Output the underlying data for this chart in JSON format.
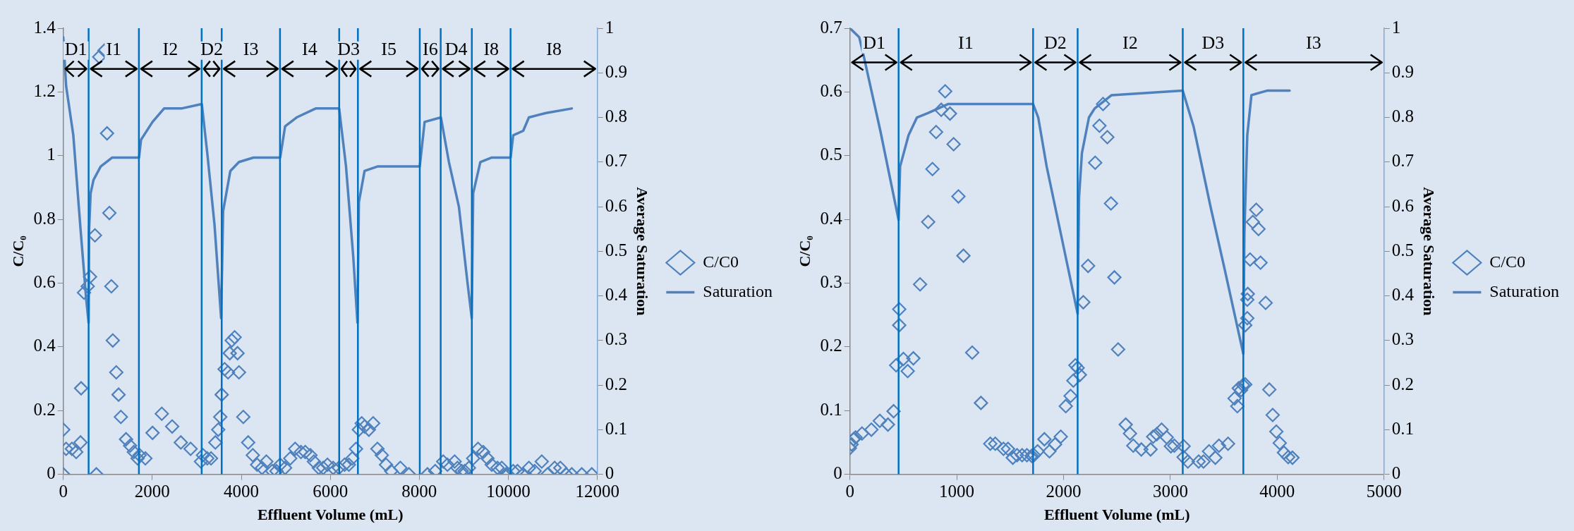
{
  "chart_data": [
    {
      "type": "scatter",
      "xlabel": "Effluent Volume (mL)",
      "ylabel": "C/C₀",
      "y2label": "Average Saturation",
      "xlim": [
        0,
        12000
      ],
      "xticks": [
        0,
        2000,
        4000,
        6000,
        8000,
        10000,
        12000
      ],
      "ylim": [
        0,
        1.4
      ],
      "yticks": [
        0,
        0.2,
        0.4,
        0.6,
        0.8,
        1,
        1.2,
        1.4
      ],
      "y2lim": [
        0,
        1
      ],
      "y2ticks": [
        0,
        0.1,
        0.2,
        0.3,
        0.4,
        0.5,
        0.6,
        0.7,
        0.8,
        0.9,
        1
      ],
      "grid": false,
      "legend": "right",
      "marker": "diamond",
      "ref_lines": [
        {
          "axis": "x",
          "value": 570,
          "color": "#0070c0"
        },
        {
          "axis": "x",
          "value": 1700,
          "color": "#0070c0"
        },
        {
          "axis": "x",
          "value": 3110,
          "color": "#0070c0"
        },
        {
          "axis": "x",
          "value": 3560,
          "color": "#0070c0"
        },
        {
          "axis": "x",
          "value": 4870,
          "color": "#0070c0"
        },
        {
          "axis": "x",
          "value": 6200,
          "color": "#0070c0"
        },
        {
          "axis": "x",
          "value": 6620,
          "color": "#0070c0"
        },
        {
          "axis": "x",
          "value": 8010,
          "color": "#0070c0"
        },
        {
          "axis": "x",
          "value": 8480,
          "color": "#0070c0"
        },
        {
          "axis": "x",
          "value": 9180,
          "color": "#0070c0"
        },
        {
          "axis": "x",
          "value": 10050,
          "color": "#0070c0"
        }
      ],
      "annotations": [
        {
          "text": "D1",
          "x": 285,
          "y": 1.33
        },
        {
          "text": "I1",
          "x": 1135,
          "y": 1.33
        },
        {
          "text": "I2",
          "x": 2405,
          "y": 1.33
        },
        {
          "text": "D2",
          "x": 3335,
          "y": 1.33
        },
        {
          "text": "I3",
          "x": 4215,
          "y": 1.33
        },
        {
          "text": "I4",
          "x": 5535,
          "y": 1.33
        },
        {
          "text": "D3",
          "x": 6410,
          "y": 1.33
        },
        {
          "text": "I5",
          "x": 7315,
          "y": 1.33
        },
        {
          "text": "I6",
          "x": 8245,
          "y": 1.33
        },
        {
          "text": "D4",
          "x": 8830,
          "y": 1.33
        },
        {
          "text": "I8",
          "x": 9615,
          "y": 1.33
        },
        {
          "text": "I8",
          "x": 11025,
          "y": 1.33
        }
      ],
      "series": [
        {
          "name": "C/C0",
          "type": "scatter",
          "color": "#4f81bd",
          "x": [
            0,
            0,
            65,
            194,
            291,
            388,
            401,
            466,
            550,
            602,
            712,
            744,
            809,
            926,
            984,
            1036,
            1081,
            1113,
            1191,
            1243,
            1294,
            1411,
            1502,
            1586,
            1670,
            1715,
            1845,
            2006,
            2214,
            2447,
            2641,
            2861,
            3094,
            3139,
            3236,
            3320,
            3417,
            3482,
            3528,
            3560,
            3625,
            3702,
            3741,
            3786,
            3851,
            3916,
            3948,
            4045,
            4155,
            4259,
            4356,
            4466,
            4563,
            4693,
            4790,
            4874,
            4984,
            5100,
            5210,
            5340,
            5437,
            5553,
            5631,
            5743,
            5840,
            5936,
            6064,
            6193,
            6321,
            6417,
            6494,
            6578,
            6642,
            6706,
            6770,
            6867,
            6963,
            7059,
            7156,
            7252,
            7368,
            7573,
            7766,
            8183,
            8356,
            8536,
            8632,
            8793,
            8857,
            8953,
            9018,
            9114,
            9210,
            9319,
            9435,
            9531,
            9628,
            9756,
            9852,
            9949,
            10109,
            10205,
            10334,
            10462,
            10591,
            10751,
            10880,
            11040,
            11168,
            11297,
            11425,
            11650,
            11875
          ],
          "values": [
            0,
            0.14,
            0.08,
            0.08,
            0.07,
            0.1,
            0.27,
            0.57,
            0.59,
            0.62,
            0.75,
            0,
            1.31,
            1.33,
            1.07,
            0.82,
            0.59,
            0.42,
            0.32,
            0.25,
            0.18,
            0.11,
            0.09,
            0.07,
            0.05,
            0.06,
            0.05,
            0.13,
            0.19,
            0.15,
            0.1,
            0.08,
            0.04,
            0.06,
            0.05,
            0.05,
            0.1,
            0.14,
            0.18,
            0.25,
            0.33,
            0.32,
            0.38,
            0.42,
            0.43,
            0.38,
            0.32,
            0.18,
            0.1,
            0.06,
            0.03,
            0.02,
            0.04,
            0.01,
            0.01,
            0.03,
            0.02,
            0.05,
            0.08,
            0.07,
            0.07,
            0.06,
            0.04,
            0.02,
            0.02,
            0.03,
            0.02,
            0.02,
            0.03,
            0.03,
            0.05,
            0.08,
            0.14,
            0.16,
            0.15,
            0.14,
            0.16,
            0.08,
            0.06,
            0.03,
            0.01,
            0.02,
            0,
            0,
            0.01,
            0.04,
            0.03,
            0.04,
            0.02,
            0.01,
            0.01,
            0.02,
            0.05,
            0.08,
            0.07,
            0.05,
            0.03,
            0.02,
            0.02,
            0,
            0.01,
            0.01,
            0,
            0.02,
            0.01,
            0.04,
            0,
            0.02,
            0.02,
            0,
            0,
            0,
            0
          ]
        },
        {
          "name": "Saturation",
          "type": "line",
          "axis": "y2",
          "marker": "none",
          "color": "#4f81bd",
          "x": [
            0,
            65,
            226,
            388,
            518,
            570,
            582,
            615,
            680,
            841,
            1100,
            1702,
            1748,
            2006,
            2265,
            2654,
            3113,
            3236,
            3398,
            3547,
            3592,
            3754,
            3948,
            4272,
            4874,
            4984,
            5243,
            5670,
            6199,
            6353,
            6514,
            6610,
            6642,
            6770,
            7059,
            8010,
            8119,
            8485,
            8665,
            8889,
            9082,
            9178,
            9210,
            9371,
            9628,
            10051,
            10109,
            10334,
            10462,
            10847,
            11425
          ],
          "values": [
            0.98,
            0.87,
            0.76,
            0.55,
            0.39,
            0.34,
            0.55,
            0.63,
            0.66,
            0.69,
            0.71,
            0.71,
            0.75,
            0.79,
            0.82,
            0.82,
            0.83,
            0.72,
            0.56,
            0.35,
            0.59,
            0.68,
            0.7,
            0.71,
            0.71,
            0.78,
            0.8,
            0.82,
            0.82,
            0.69,
            0.49,
            0.34,
            0.61,
            0.68,
            0.69,
            0.69,
            0.79,
            0.8,
            0.7,
            0.6,
            0.43,
            0.35,
            0.63,
            0.7,
            0.71,
            0.71,
            0.76,
            0.77,
            0.8,
            0.81,
            0.82
          ]
        }
      ]
    },
    {
      "type": "scatter",
      "xlabel": "Effluent Volume (mL)",
      "ylabel": "C/C₀",
      "y2label": "Average Saturation",
      "xlim": [
        0,
        5000
      ],
      "xticks": [
        0,
        1000,
        2000,
        3000,
        4000,
        5000
      ],
      "ylim": [
        0,
        0.7
      ],
      "yticks": [
        0,
        0.1,
        0.2,
        0.3,
        0.4,
        0.5,
        0.6,
        0.7
      ],
      "y2lim": [
        0,
        1
      ],
      "y2ticks": [
        0,
        0.1,
        0.2,
        0.3,
        0.4,
        0.5,
        0.6,
        0.7,
        0.8,
        0.9,
        1
      ],
      "grid": false,
      "legend": "right",
      "marker": "diamond",
      "ref_lines": [
        {
          "axis": "x",
          "value": 456,
          "color": "#0070c0"
        },
        {
          "axis": "x",
          "value": 1715,
          "color": "#0070c0"
        },
        {
          "axis": "x",
          "value": 2132,
          "color": "#0070c0"
        },
        {
          "axis": "x",
          "value": 3116,
          "color": "#0070c0"
        },
        {
          "axis": "x",
          "value": 3683,
          "color": "#0070c0"
        }
      ],
      "annotations": [
        {
          "text": "D1",
          "x": 228,
          "y": 0.675
        },
        {
          "text": "I1",
          "x": 1085,
          "y": 0.675
        },
        {
          "text": "D2",
          "x": 1923,
          "y": 0.675
        },
        {
          "text": "I2",
          "x": 2624,
          "y": 0.675
        },
        {
          "text": "D3",
          "x": 3400,
          "y": 0.675
        },
        {
          "text": "I3",
          "x": 4341,
          "y": 0.675
        }
      ],
      "series": [
        {
          "name": "C/C0",
          "type": "scatter",
          "color": "#4f81bd",
          "x": [
            0,
            16,
            34,
            53,
            113,
            201,
            280,
            356,
            409,
            433,
            462,
            462,
            501,
            541,
            594,
            657,
            733,
            773,
            807,
            855,
            892,
            937,
            971,
            1016,
            1063,
            1145,
            1227,
            1314,
            1361,
            1438,
            1480,
            1525,
            1565,
            1612,
            1657,
            1702,
            1723,
            1757,
            1821,
            1868,
            1921,
            1974,
            2021,
            2066,
            2092,
            2111,
            2132,
            2153,
            2185,
            2230,
            2296,
            2336,
            2370,
            2410,
            2444,
            2476,
            2511,
            2582,
            2622,
            2653,
            2728,
            2815,
            2839,
            2873,
            2918,
            2966,
            3005,
            3037,
            3124,
            3124,
            3164,
            3265,
            3310,
            3362,
            3421,
            3455,
            3540,
            3601,
            3627,
            3640,
            3661,
            3680,
            3701,
            3701,
            3720,
            3720,
            3725,
            3746,
            3772,
            3804,
            3825,
            3844,
            3892,
            3926,
            3958,
            3992,
            4024,
            4063,
            4103,
            4143
          ],
          "values": [
            0.041,
            0.047,
            0.055,
            0.058,
            0.064,
            0.07,
            0.084,
            0.078,
            0.099,
            0.171,
            0.234,
            0.259,
            0.181,
            0.162,
            0.182,
            0.298,
            0.396,
            0.479,
            0.537,
            0.572,
            0.601,
            0.566,
            0.518,
            0.436,
            0.343,
            0.191,
            0.112,
            0.048,
            0.048,
            0.04,
            0.04,
            0.026,
            0.03,
            0.03,
            0.03,
            0.029,
            0.03,
            0.036,
            0.055,
            0.036,
            0.047,
            0.059,
            0.107,
            0.123,
            0.147,
            0.171,
            0.167,
            0.156,
            0.27,
            0.327,
            0.489,
            0.547,
            0.581,
            0.529,
            0.425,
            0.309,
            0.196,
            0.078,
            0.064,
            0.045,
            0.039,
            0.039,
            0.059,
            0.063,
            0.07,
            0.058,
            0.044,
            0.045,
            0.044,
            0.027,
            0.02,
            0.02,
            0.02,
            0.036,
            0.026,
            0.045,
            0.048,
            0.119,
            0.107,
            0.135,
            0.132,
            0.14,
            0.141,
            0.234,
            0.245,
            0.274,
            0.283,
            0.337,
            0.396,
            0.415,
            0.385,
            0.332,
            0.269,
            0.133,
            0.093,
            0.067,
            0.049,
            0.034,
            0.027,
            0.026
          ]
        },
        {
          "name": "Saturation",
          "type": "line",
          "axis": "y2",
          "marker": "none",
          "color": "#4f81bd",
          "x": [
            0,
            87,
            127,
            285,
            456,
            470,
            549,
            628,
            734,
            918,
            1103,
            1715,
            1763,
            1842,
            1974,
            2132,
            2145,
            2172,
            2238,
            2291,
            2450,
            3116,
            3217,
            3376,
            3508,
            3683,
            3693,
            3720,
            3759,
            3905,
            4116
          ],
          "values": [
            1,
            0.98,
            0.94,
            0.77,
            0.57,
            0.69,
            0.76,
            0.8,
            0.81,
            0.83,
            0.83,
            0.83,
            0.8,
            0.69,
            0.54,
            0.36,
            0.62,
            0.72,
            0.8,
            0.82,
            0.85,
            0.86,
            0.78,
            0.6,
            0.46,
            0.27,
            0.54,
            0.76,
            0.85,
            0.86,
            0.86
          ]
        }
      ]
    }
  ]
}
